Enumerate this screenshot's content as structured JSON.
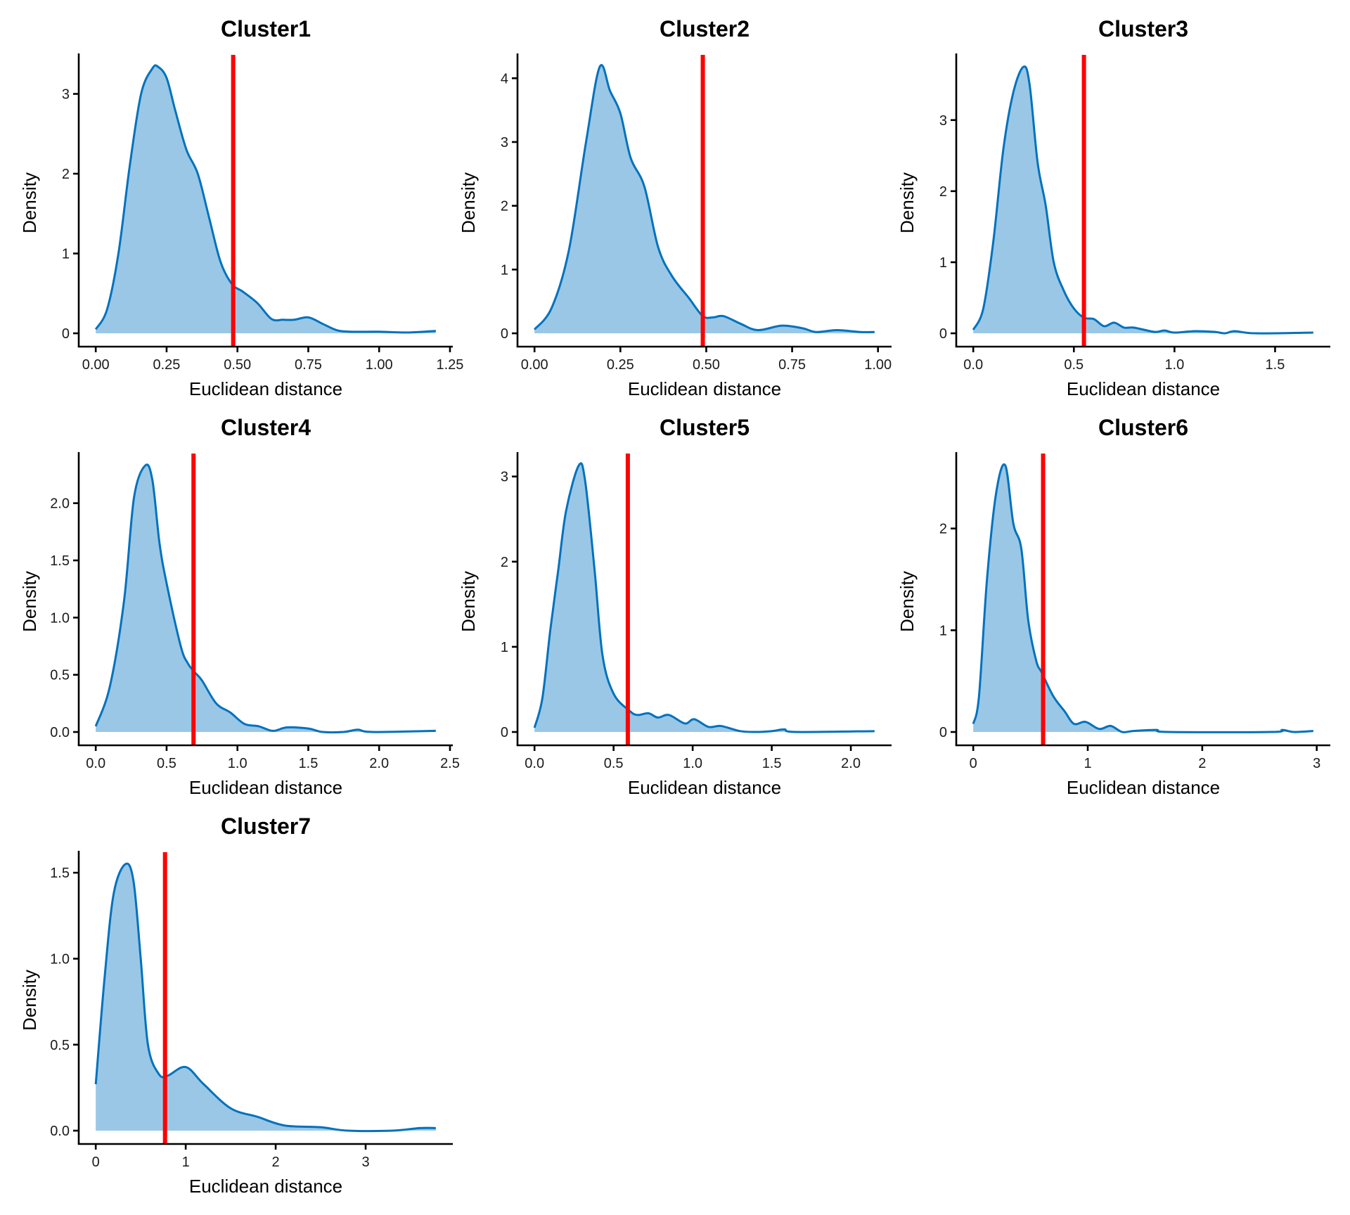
{
  "figure": {
    "xlabel": "Euclidean distance",
    "ylabel": "Density",
    "colors": {
      "fill": "#9AC7E6",
      "line": "#0072BD",
      "threshold": "#FF0000",
      "axis": "#000000"
    }
  },
  "chart_data": [
    {
      "type": "area",
      "title": "Cluster1",
      "xlabel": "Euclidean distance",
      "ylabel": "Density",
      "xlim": [
        0,
        1.2
      ],
      "ylim": [
        0,
        3.34
      ],
      "xticks": [
        0,
        0.25,
        0.5,
        0.75,
        1.0,
        1.25
      ],
      "xtick_labels": [
        "0.00",
        "0.25",
        "0.50",
        "0.75",
        "1.00",
        "1.25"
      ],
      "yticks": [
        0,
        1,
        2,
        3
      ],
      "ytick_labels": [
        "0",
        "1",
        "2",
        "3"
      ],
      "threshold": 0.485,
      "x": [
        0,
        0.04,
        0.08,
        0.12,
        0.16,
        0.2,
        0.22,
        0.25,
        0.28,
        0.32,
        0.36,
        0.4,
        0.44,
        0.48,
        0.52,
        0.57,
        0.62,
        0.66,
        0.7,
        0.75,
        0.8,
        0.85,
        0.9,
        1.0,
        1.1,
        1.2
      ],
      "y": [
        0.05,
        0.3,
        1.0,
        2.1,
        3.0,
        3.32,
        3.34,
        3.2,
        2.8,
        2.3,
        2.0,
        1.45,
        0.9,
        0.62,
        0.52,
        0.38,
        0.18,
        0.17,
        0.17,
        0.2,
        0.12,
        0.04,
        0.02,
        0.02,
        0.01,
        0.03
      ]
    },
    {
      "type": "area",
      "title": "Cluster2",
      "xlabel": "Euclidean distance",
      "ylabel": "Density",
      "xlim": [
        0,
        0.99
      ],
      "ylim": [
        0,
        4.18
      ],
      "xticks": [
        0,
        0.25,
        0.5,
        0.75,
        1.0
      ],
      "xtick_labels": [
        "0.00",
        "0.25",
        "0.50",
        "0.75",
        "1.00"
      ],
      "yticks": [
        0,
        1,
        2,
        3,
        4
      ],
      "ytick_labels": [
        "0",
        "1",
        "2",
        "3",
        "4"
      ],
      "threshold": 0.49,
      "x": [
        0,
        0.05,
        0.1,
        0.15,
        0.19,
        0.22,
        0.25,
        0.28,
        0.32,
        0.36,
        0.4,
        0.45,
        0.49,
        0.52,
        0.55,
        0.6,
        0.65,
        0.72,
        0.78,
        0.82,
        0.88,
        0.95,
        0.99
      ],
      "y": [
        0.06,
        0.4,
        1.3,
        3.0,
        4.18,
        3.8,
        3.45,
        2.75,
        2.3,
        1.35,
        0.9,
        0.55,
        0.27,
        0.25,
        0.27,
        0.15,
        0.05,
        0.12,
        0.08,
        0.02,
        0.05,
        0.02,
        0.02
      ]
    },
    {
      "type": "area",
      "title": "Cluster3",
      "xlabel": "Euclidean distance",
      "ylabel": "Density",
      "xlim": [
        0,
        1.69
      ],
      "ylim": [
        0,
        3.75
      ],
      "xticks": [
        0,
        0.5,
        1.0,
        1.5
      ],
      "xtick_labels": [
        "0.0",
        "0.5",
        "1.0",
        "1.5"
      ],
      "yticks": [
        0,
        1,
        2,
        3
      ],
      "ytick_labels": [
        "0",
        "1",
        "2",
        "3"
      ],
      "threshold": 0.55,
      "x": [
        0,
        0.05,
        0.1,
        0.15,
        0.2,
        0.25,
        0.28,
        0.32,
        0.36,
        0.4,
        0.45,
        0.5,
        0.55,
        0.6,
        0.65,
        0.7,
        0.75,
        0.8,
        0.9,
        0.95,
        1.0,
        1.1,
        1.2,
        1.25,
        1.3,
        1.4,
        1.69
      ],
      "y": [
        0.05,
        0.35,
        1.3,
        2.6,
        3.4,
        3.75,
        3.5,
        2.4,
        1.8,
        1.0,
        0.6,
        0.35,
        0.22,
        0.2,
        0.1,
        0.15,
        0.08,
        0.08,
        0.02,
        0.04,
        0.01,
        0.03,
        0.02,
        0.0,
        0.03,
        0.0,
        0.01
      ]
    },
    {
      "type": "area",
      "title": "Cluster4",
      "xlabel": "Euclidean distance",
      "ylabel": "Density",
      "xlim": [
        0,
        2.4
      ],
      "ylim": [
        0,
        2.33
      ],
      "xticks": [
        0,
        0.5,
        1.0,
        1.5,
        2.0,
        2.5
      ],
      "xtick_labels": [
        "0.0",
        "0.5",
        "1.0",
        "1.5",
        "2.0",
        "2.5"
      ],
      "yticks": [
        0,
        0.5,
        1.0,
        1.5,
        2.0
      ],
      "ytick_labels": [
        "0.0",
        "0.5",
        "1.0",
        "1.5",
        "2.0"
      ],
      "threshold": 0.69,
      "x": [
        0,
        0.1,
        0.2,
        0.27,
        0.35,
        0.4,
        0.45,
        0.5,
        0.6,
        0.65,
        0.7,
        0.75,
        0.85,
        0.95,
        1.05,
        1.15,
        1.25,
        1.35,
        1.5,
        1.6,
        1.75,
        1.85,
        1.95,
        2.4
      ],
      "y": [
        0.05,
        0.4,
        1.15,
        2.05,
        2.33,
        2.2,
        1.65,
        1.3,
        0.75,
        0.6,
        0.52,
        0.45,
        0.25,
        0.17,
        0.07,
        0.05,
        0.01,
        0.04,
        0.03,
        0.0,
        0.0,
        0.02,
        0.0,
        0.01
      ]
    },
    {
      "type": "area",
      "title": "Cluster5",
      "xlabel": "Euclidean distance",
      "ylabel": "Density",
      "xlim": [
        0,
        2.15
      ],
      "ylim": [
        0,
        3.13
      ],
      "xticks": [
        0,
        0.5,
        1.0,
        1.5,
        2.0
      ],
      "xtick_labels": [
        "0.0",
        "0.5",
        "1.0",
        "1.5",
        "2.0"
      ],
      "yticks": [
        0,
        1,
        2,
        3
      ],
      "ytick_labels": [
        "0",
        "1",
        "2",
        "3"
      ],
      "threshold": 0.59,
      "x": [
        0,
        0.05,
        0.1,
        0.15,
        0.2,
        0.28,
        0.32,
        0.38,
        0.43,
        0.5,
        0.6,
        0.65,
        0.72,
        0.78,
        0.85,
        0.95,
        1.01,
        1.1,
        1.18,
        1.3,
        1.4,
        1.5,
        1.58,
        1.65,
        2.15
      ],
      "y": [
        0.05,
        0.4,
        1.2,
        1.9,
        2.6,
        3.13,
        2.95,
        1.9,
        0.9,
        0.45,
        0.25,
        0.2,
        0.22,
        0.17,
        0.2,
        0.1,
        0.15,
        0.06,
        0.07,
        0.01,
        0.0,
        0.01,
        0.03,
        0.0,
        0.01
      ]
    },
    {
      "type": "area",
      "title": "Cluster6",
      "xlabel": "Euclidean distance",
      "ylabel": "Density",
      "xlim": [
        0,
        2.97
      ],
      "ylim": [
        0,
        2.62
      ],
      "xticks": [
        0,
        1,
        2,
        3
      ],
      "xtick_labels": [
        "0",
        "1",
        "2",
        "3"
      ],
      "yticks": [
        0,
        1,
        2
      ],
      "ytick_labels": [
        "0",
        "1",
        "2"
      ],
      "threshold": 0.61,
      "x": [
        0,
        0.05,
        0.12,
        0.2,
        0.28,
        0.35,
        0.42,
        0.48,
        0.55,
        0.6,
        0.7,
        0.8,
        0.88,
        0.98,
        1.1,
        1.2,
        1.3,
        1.4,
        1.6,
        1.7,
        2.6,
        2.7,
        2.8,
        2.97
      ],
      "y": [
        0.08,
        0.35,
        1.5,
        2.35,
        2.62,
        2.05,
        1.8,
        1.1,
        0.7,
        0.58,
        0.35,
        0.2,
        0.08,
        0.1,
        0.03,
        0.06,
        0.0,
        0.01,
        0.02,
        0.0,
        0.0,
        0.02,
        0.0,
        0.01
      ]
    },
    {
      "type": "area",
      "title": "Cluster7",
      "xlabel": "Euclidean distance",
      "ylabel": "Density",
      "xlim": [
        0,
        3.78
      ],
      "ylim": [
        0,
        1.55
      ],
      "xticks": [
        0,
        1,
        2,
        3
      ],
      "xtick_labels": [
        "0",
        "1",
        "2",
        "3"
      ],
      "yticks": [
        0,
        0.5,
        1.0,
        1.5
      ],
      "ytick_labels": [
        "0.0",
        "0.5",
        "1.0",
        "1.5"
      ],
      "threshold": 0.77,
      "x": [
        0,
        0.1,
        0.2,
        0.33,
        0.42,
        0.5,
        0.58,
        0.7,
        0.8,
        1.0,
        1.2,
        1.5,
        1.8,
        2.1,
        2.5,
        2.8,
        3.3,
        3.6,
        3.78
      ],
      "y": [
        0.27,
        0.9,
        1.38,
        1.55,
        1.45,
        1.0,
        0.5,
        0.33,
        0.32,
        0.37,
        0.27,
        0.13,
        0.08,
        0.03,
        0.02,
        0.0,
        0.0,
        0.015,
        0.015
      ]
    }
  ]
}
